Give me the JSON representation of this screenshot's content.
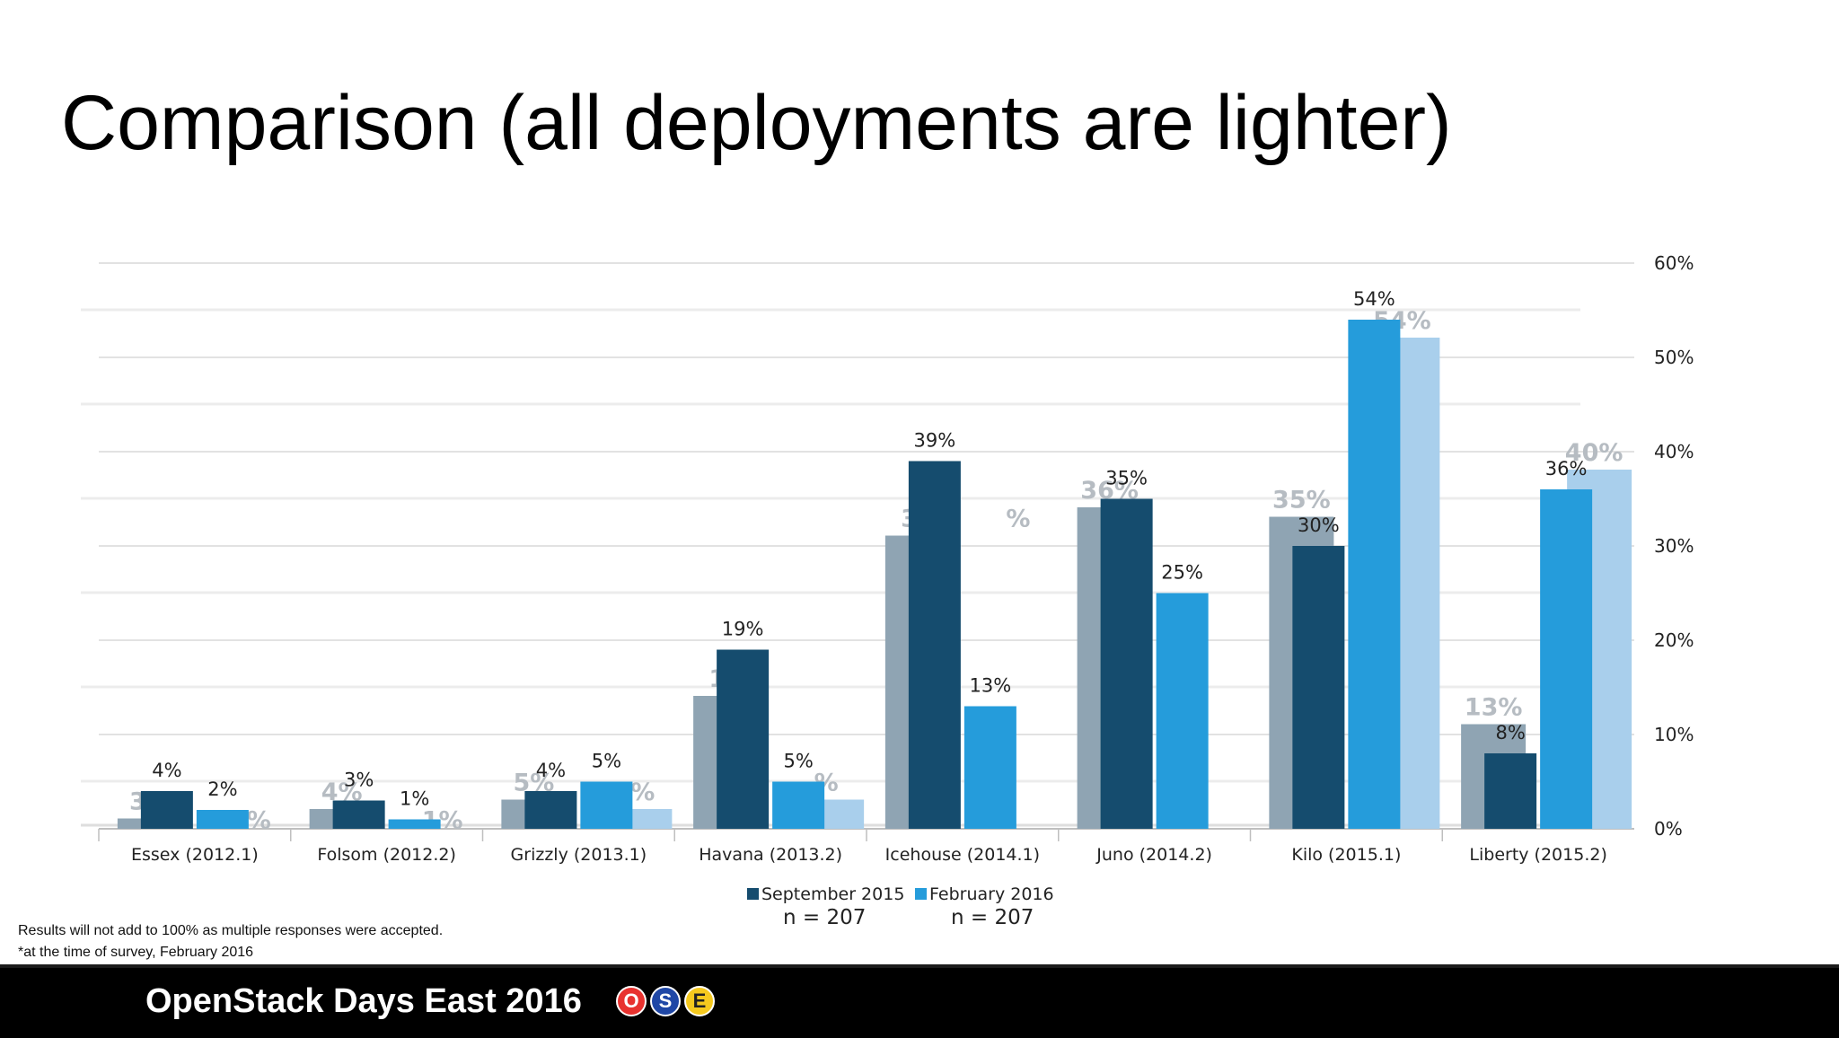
{
  "slide": {
    "title": "Comparison (all deployments are lighter)",
    "footnotes": [
      "Results will not add to 100% as multiple responses were accepted.",
      "*at the time of survey, February 2016"
    ]
  },
  "footer": {
    "title": "OpenStack Days East 2016",
    "badges": [
      {
        "letter": "O",
        "color": "#e8322f",
        "text_color": "#ffffff"
      },
      {
        "letter": "S",
        "color": "#1f47a6",
        "text_color": "#ffffff"
      },
      {
        "letter": "E",
        "color": "#f5c91e",
        "text_color": "#222222"
      }
    ]
  },
  "chart_data": {
    "type": "bar",
    "categories": [
      "Essex (2012.1)",
      "Folsom (2012.2)",
      "Grizzly (2013.1)",
      "Havana (2013.2)",
      "Icehouse (2014.1)",
      "Juno (2014.2)",
      "Kilo (2015.1)",
      "Liberty (2015.2)"
    ],
    "series": [
      {
        "name": "September 2015",
        "legend_sub": "n = 207",
        "color": "#154c6e",
        "values": [
          4,
          3,
          4,
          19,
          39,
          35,
          30,
          8
        ],
        "labels": [
          "4%",
          "3%",
          "4%",
          "19%",
          "39%",
          "35%",
          "30%",
          "8%"
        ]
      },
      {
        "name": "February 2016",
        "legend_sub": "n = 207",
        "color": "#259cdb",
        "values": [
          2,
          1,
          5,
          5,
          13,
          25,
          54,
          36
        ],
        "labels": [
          "2%",
          "1%",
          "5%",
          "5%",
          "13%",
          "25%",
          "54%",
          "36%"
        ]
      }
    ],
    "background_series": [
      {
        "color": "#8fa4b3",
        "values": [
          3,
          4,
          5,
          16,
          33,
          36,
          35,
          13
        ],
        "labels": [
          "3%",
          "4%",
          "5%",
          "16",
          "33",
          "36%",
          "35%",
          "13%"
        ]
      },
      {
        "color": "#a9cfec",
        "values": [
          1,
          1,
          4,
          5,
          null,
          null,
          54,
          40
        ],
        "labels": [
          "1%",
          "1%",
          "4%",
          "%",
          "%",
          "",
          "54%",
          "40%"
        ]
      }
    ],
    "ylim": [
      0,
      60
    ],
    "yticks": [
      0,
      10,
      20,
      30,
      40,
      50,
      60
    ],
    "ytick_labels": [
      "0%",
      "10%",
      "20%",
      "30%",
      "40%",
      "50%",
      "60%"
    ],
    "y_axis_side": "right",
    "grid": true,
    "legend_position": "bottom",
    "xlabel": "",
    "ylabel": ""
  }
}
